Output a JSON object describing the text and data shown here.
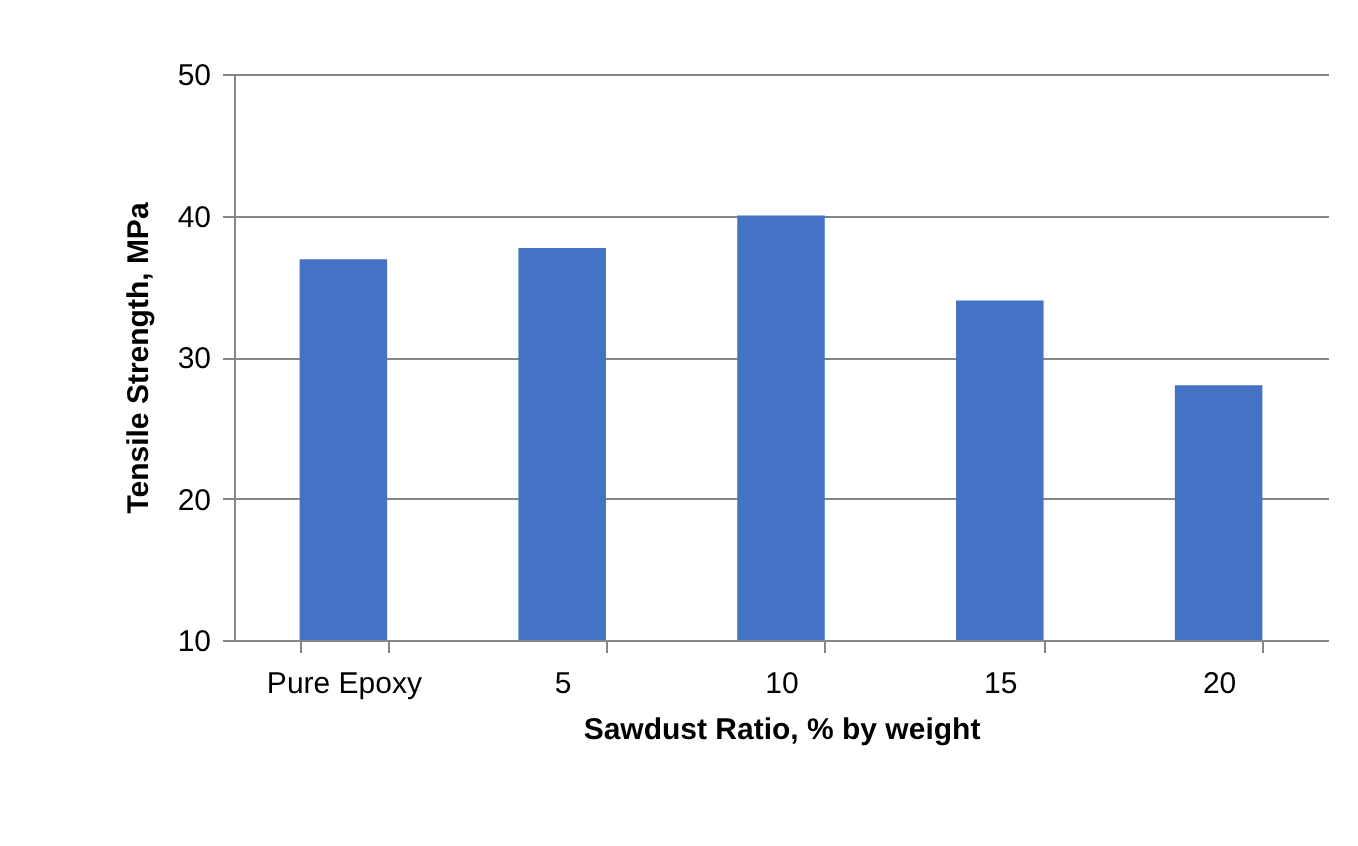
{
  "chart_data": {
    "type": "bar",
    "xlabel": "Sawdust Ratio, % by weight",
    "ylabel": "Tensile Strength, MPa",
    "categories": [
      "Pure Epoxy",
      "5",
      "10",
      "15",
      "20"
    ],
    "values": [
      36.9,
      37.7,
      40,
      34,
      28
    ],
    "color": "#4472c4",
    "ylim": [
      10,
      50
    ],
    "yticks": [
      10,
      20,
      30,
      40,
      50
    ],
    "grid": "y"
  }
}
